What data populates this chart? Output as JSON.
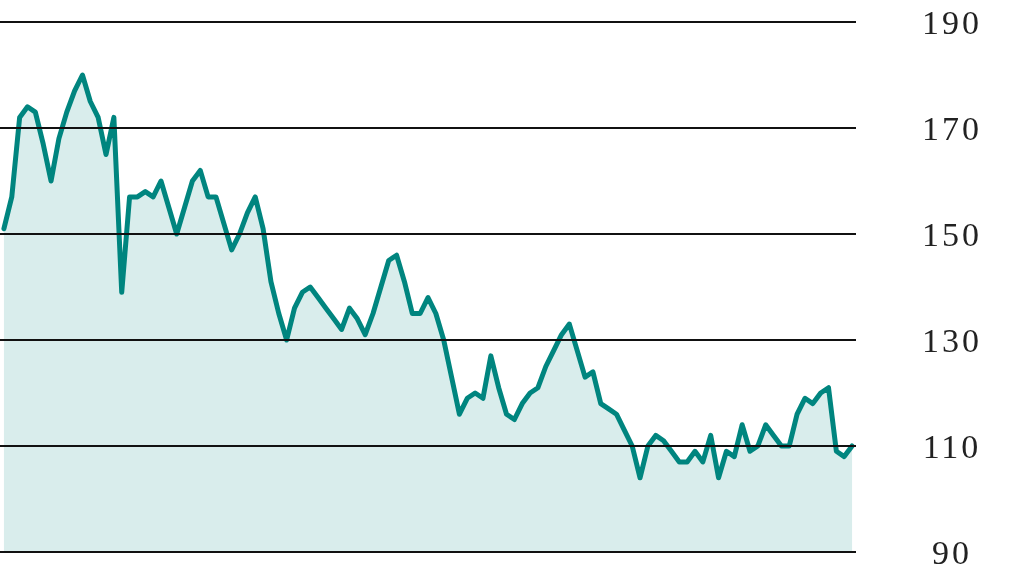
{
  "chart_data": {
    "type": "area",
    "categories": [
      null,
      null,
      null,
      null,
      null,
      null,
      null,
      null,
      null,
      null,
      null,
      null,
      null,
      null,
      null,
      null,
      null,
      null,
      null,
      null,
      null,
      null,
      null,
      null,
      null,
      null,
      null,
      null,
      null,
      null,
      null,
      null,
      null,
      null,
      null,
      null,
      null,
      null,
      null,
      null,
      null,
      null,
      null,
      null,
      null,
      null,
      null,
      null,
      null,
      null,
      null,
      null,
      null,
      null,
      null,
      null,
      null,
      null,
      null,
      null,
      null,
      null,
      null,
      null,
      null,
      null,
      null,
      null,
      null,
      null,
      null,
      null,
      null,
      null,
      null,
      null,
      null,
      null,
      null,
      null,
      null,
      null,
      null,
      null,
      null,
      null,
      null,
      null,
      null,
      null,
      null,
      null,
      null,
      null,
      null,
      null,
      null,
      null,
      null,
      null,
      null,
      null,
      null,
      null,
      null,
      null,
      null,
      null,
      null
    ],
    "series": [
      {
        "color": "#00857f",
        "values": [
          151,
          157,
          172,
          174,
          173,
          167,
          160,
          168,
          173,
          177,
          180,
          175,
          172,
          165,
          172,
          139,
          157,
          157,
          158,
          157,
          160,
          155,
          150,
          155,
          160,
          162,
          157,
          157,
          152,
          147,
          150,
          154,
          157,
          151,
          141,
          135,
          130,
          136,
          139,
          140,
          138,
          136,
          134,
          132,
          136,
          134,
          131,
          135,
          140,
          145,
          146,
          141,
          135,
          135,
          138,
          135,
          130,
          123,
          116,
          119,
          120,
          119,
          127,
          121,
          116,
          115,
          118,
          120,
          121,
          125,
          128,
          131,
          133,
          128,
          123,
          124,
          118,
          117,
          116,
          113,
          110,
          104,
          110,
          112,
          111,
          109,
          107,
          107,
          109,
          107,
          112,
          104,
          109,
          108,
          114,
          109,
          110,
          114,
          112,
          110,
          110,
          116,
          119,
          118,
          120,
          121,
          109,
          108,
          110
        ]
      }
    ],
    "ylim": [
      90,
      190
    ],
    "yticks": [
      90,
      110,
      130,
      150,
      170,
      190
    ],
    "grid": "y",
    "tick_labels": "y"
  }
}
